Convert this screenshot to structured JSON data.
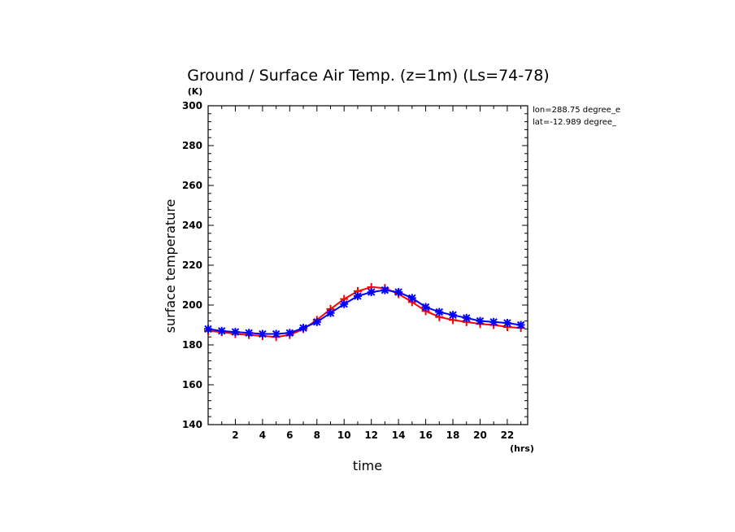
{
  "chart_data": {
    "type": "line",
    "title": "Ground / Surface Air Temp. (z=1m) (Ls=74-78)",
    "xlabel": "time",
    "ylabel": "surface temperature",
    "x_unit": "(hrs)",
    "y_unit": "(K)",
    "xlim": [
      0,
      23.5
    ],
    "ylim": [
      140,
      300
    ],
    "xticks": [
      2,
      4,
      6,
      8,
      10,
      12,
      14,
      16,
      18,
      20,
      22
    ],
    "yticks": [
      140,
      160,
      180,
      200,
      220,
      240,
      260,
      280,
      300
    ],
    "annotations": [
      "lon=288.75 degree_e",
      "lat=-12.989 degree_"
    ],
    "grid": false,
    "x": [
      0,
      1,
      2,
      3,
      4,
      5,
      6,
      7,
      8,
      9,
      10,
      11,
      12,
      13,
      14,
      15,
      16,
      17,
      18,
      19,
      20,
      21,
      22,
      23
    ],
    "series": [
      {
        "color": "#ff0000",
        "marker": "plus",
        "values": [
          187.0,
          186.5,
          185.5,
          185.0,
          184.5,
          184.0,
          185.0,
          188.0,
          192.5,
          198.0,
          203.0,
          207.0,
          209.0,
          208.5,
          205.5,
          201.5,
          197.0,
          194.0,
          192.5,
          191.5,
          190.5,
          190.0,
          189.0,
          188.5
        ]
      },
      {
        "color": "#0000ff",
        "marker": "asterisk",
        "values": [
          188.0,
          187.0,
          186.5,
          186.0,
          185.5,
          185.5,
          186.0,
          188.5,
          191.5,
          196.0,
          200.5,
          204.5,
          206.5,
          207.5,
          206.5,
          203.5,
          199.0,
          196.5,
          195.0,
          193.5,
          192.0,
          191.5,
          191.0,
          190.0
        ]
      }
    ]
  }
}
